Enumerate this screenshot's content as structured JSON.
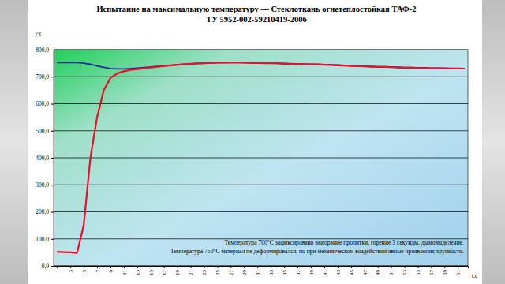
{
  "chart_data": {
    "type": "line",
    "title": "Испытание на максимальную температуру — Стеклоткань огнетеплостойкая ТАФ-2",
    "subtitle": "ТУ 5952-002-59210419-2006",
    "ylabel": "t°C",
    "xlabel": "t,c",
    "annotations": [
      "Температура 700°С зафиксировано выгорание пропитки,  горение 3 секунды, дымовыделение.",
      "Температура 750°С материал не деформировался, но при механическом воздействии явные проявления хрупкости."
    ],
    "grid": true,
    "x": [
      1,
      2,
      3,
      4,
      5,
      6,
      7,
      8,
      9,
      10,
      11,
      12,
      13,
      14,
      15,
      16,
      17,
      18,
      19,
      20,
      21,
      22,
      23,
      24,
      25,
      26,
      27,
      28,
      29,
      30,
      31,
      32,
      33,
      34,
      35,
      36,
      37,
      38,
      39,
      40,
      41,
      42,
      43,
      44,
      45,
      46,
      47,
      48,
      49,
      50,
      51,
      52,
      53,
      54,
      55,
      56,
      57,
      58,
      59,
      60,
      61,
      62
    ],
    "xlim": [
      0.5,
      62.5
    ],
    "xticks": [
      1,
      3,
      5,
      7,
      9,
      11,
      13,
      15,
      17,
      19,
      21,
      23,
      25,
      27,
      29,
      31,
      33,
      35,
      37,
      39,
      41,
      43,
      45,
      47,
      49,
      51,
      53,
      55,
      57,
      59,
      61
    ],
    "ylim": [
      0,
      800
    ],
    "yticks": [
      {
        "value": 0,
        "label": "0,0"
      },
      {
        "value": 100,
        "label": "100,0"
      },
      {
        "value": 200,
        "label": "200,0"
      },
      {
        "value": 300,
        "label": "300,0"
      },
      {
        "value": 400,
        "label": "400,0"
      },
      {
        "value": 500,
        "label": "500,0"
      },
      {
        "value": 600,
        "label": "600,0"
      },
      {
        "value": 700,
        "label": "700,0"
      },
      {
        "value": 800,
        "label": "800,0"
      }
    ],
    "series": [
      {
        "color": "#1f2f8f",
        "type": "line",
        "values": [
          752,
          753,
          752,
          752,
          750,
          746,
          740,
          735,
          730,
          729,
          729,
          730,
          732,
          734,
          736,
          738,
          740,
          742,
          744,
          746,
          748,
          749,
          750,
          751,
          752,
          752,
          753,
          753,
          752,
          752,
          751,
          751,
          750,
          750,
          749,
          748,
          748,
          747,
          746,
          746,
          745,
          744,
          743,
          742,
          741,
          740,
          739,
          738,
          737,
          737,
          736,
          735,
          734,
          734,
          733,
          733,
          732,
          732,
          731,
          731,
          731,
          730
        ]
      },
      {
        "color": "#e8102a",
        "type": "line",
        "values": [
          52,
          51,
          50,
          48,
          150,
          400,
          550,
          650,
          695,
          712,
          720,
          725,
          728,
          731,
          734,
          737,
          740,
          742,
          744,
          746,
          748,
          749,
          750,
          751,
          752,
          752,
          752,
          752,
          752,
          751,
          751,
          750,
          750,
          749,
          748,
          748,
          747,
          746,
          746,
          745,
          744,
          743,
          742,
          741,
          740,
          739,
          738,
          737,
          736,
          736,
          735,
          734,
          733,
          733,
          732,
          732,
          731,
          731,
          731,
          730,
          730,
          730
        ]
      }
    ]
  }
}
